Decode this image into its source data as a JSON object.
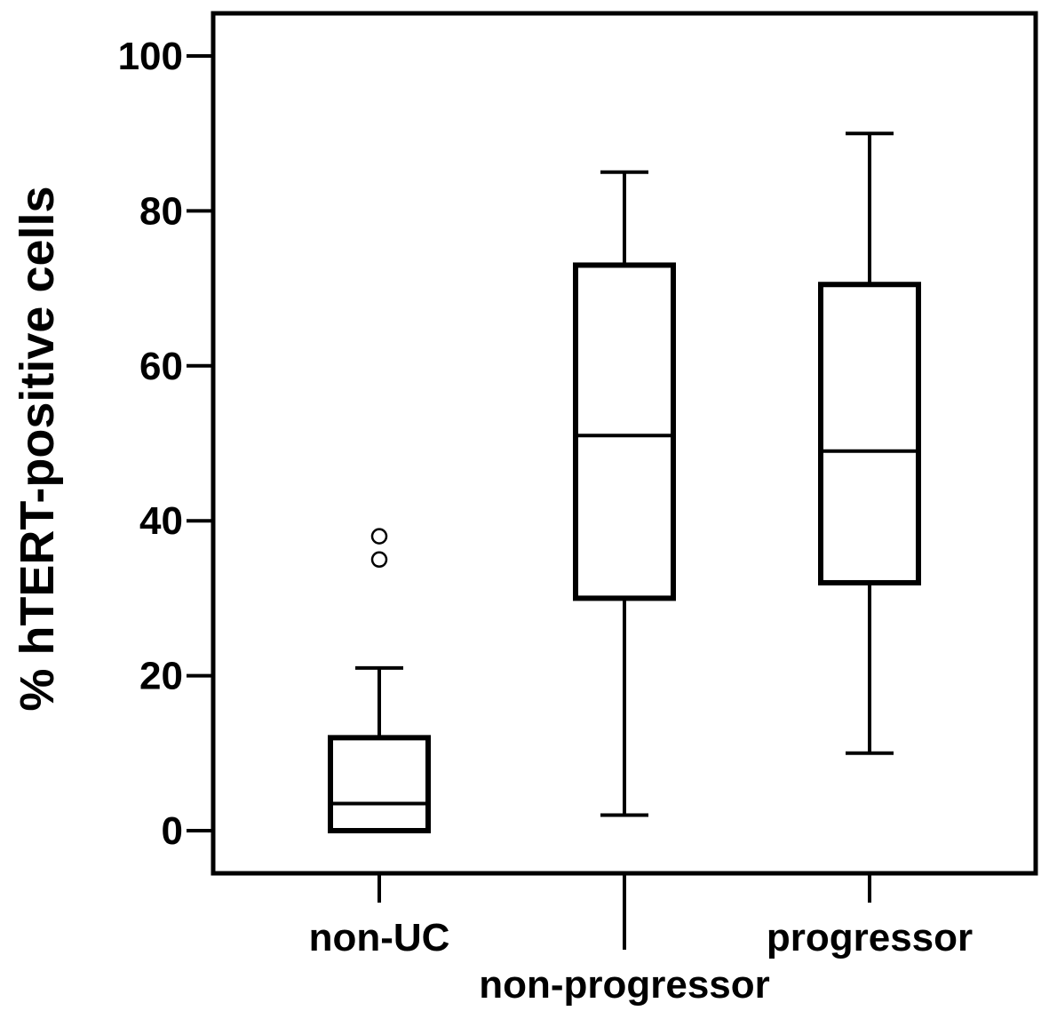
{
  "chart_data": {
    "type": "box",
    "ylabel": "% hTERT-positive cells",
    "xlabel": "",
    "ylim": [
      0,
      100
    ],
    "yticks": [
      0,
      20,
      40,
      60,
      80,
      100
    ],
    "grid": false,
    "categories": [
      "non-UC",
      "non-progressor",
      "progressor"
    ],
    "boxes": [
      {
        "category": "non-UC",
        "whisker_low": 0,
        "q1": 0,
        "median": 3.5,
        "q3": 12,
        "whisker_high": 21,
        "outliers": [
          38,
          35
        ]
      },
      {
        "category": "non-progressor",
        "whisker_low": 2,
        "q1": 30,
        "median": 51,
        "q3": 73,
        "whisker_high": 85,
        "outliers": []
      },
      {
        "category": "progressor",
        "whisker_low": 10,
        "q1": 32,
        "median": 49,
        "q3": 70.5,
        "whisker_high": 90,
        "outliers": []
      }
    ]
  }
}
